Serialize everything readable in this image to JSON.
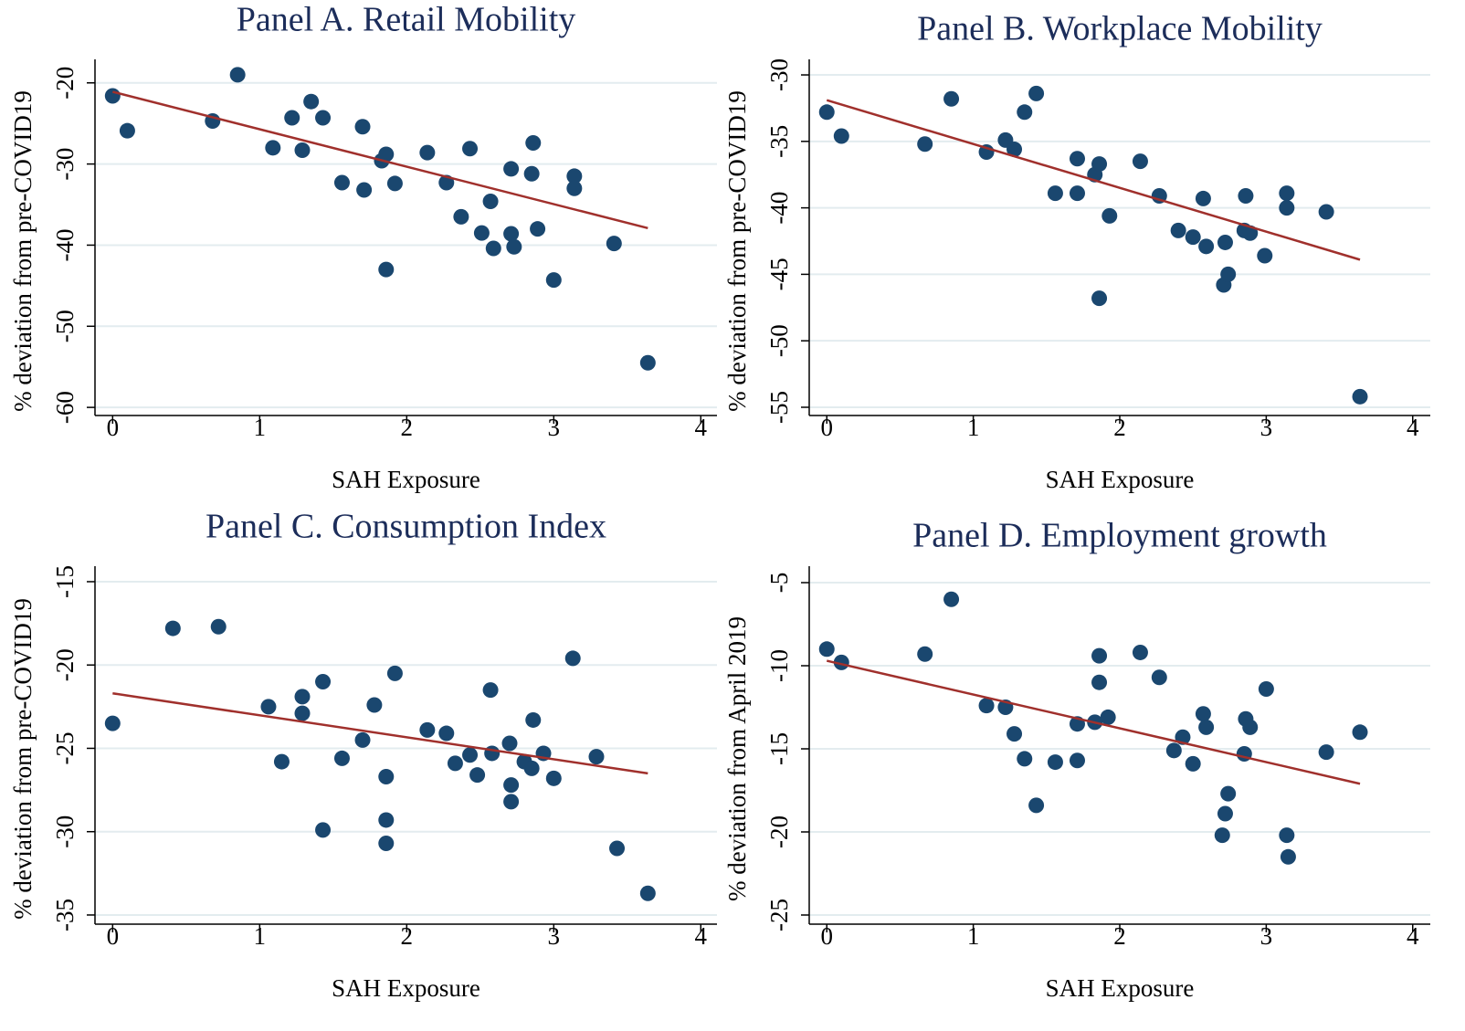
{
  "chart_data": [
    {
      "type": "scatter",
      "title": "Panel A. Retail Mobility",
      "x_label": "SAH Exposure",
      "y_label": "% deviation from pre-COVID19",
      "x": [
        0,
        0.1,
        0.68,
        0.85,
        1.09,
        1.22,
        1.29,
        1.35,
        1.43,
        1.56,
        1.7,
        1.71,
        1.83,
        1.86,
        1.86,
        1.92,
        2.14,
        2.27,
        2.37,
        2.43,
        2.51,
        2.57,
        2.59,
        2.71,
        2.71,
        2.73,
        2.85,
        2.86,
        2.89,
        3.0,
        3.14,
        3.14,
        3.41,
        3.64
      ],
      "values": [
        -21.6,
        -25.9,
        -24.7,
        -19.0,
        -28.0,
        -24.3,
        -28.3,
        -22.3,
        -24.3,
        -32.3,
        -25.4,
        -33.2,
        -29.6,
        -28.8,
        -43.0,
        -32.4,
        -28.6,
        -32.3,
        -36.5,
        -28.1,
        -38.5,
        -34.6,
        -40.4,
        -38.6,
        -30.6,
        -40.2,
        -31.2,
        -27.4,
        -38.0,
        -44.3,
        -31.5,
        -33.0,
        -39.8,
        -54.5
      ],
      "color": "#1a476f",
      "fit_line": {
        "x": [
          0,
          3.64
        ],
        "values": [
          -21.1,
          -37.9
        ],
        "color": "#a0302c"
      },
      "xlim": [
        -0.12,
        4.11
      ],
      "ylim": [
        -61.0,
        -17.1
      ],
      "xticks": [
        0,
        1,
        2,
        3,
        4
      ],
      "yticks": [
        -60,
        -50,
        -40,
        -30,
        -20
      ],
      "grid": true
    },
    {
      "type": "scatter",
      "title": "Panel B. Workplace Mobility",
      "x_label": "SAH Exposure",
      "y_label": "% deviation from pre-COVID19",
      "x": [
        0,
        0.1,
        0.67,
        0.85,
        1.09,
        1.22,
        1.28,
        1.35,
        1.43,
        1.56,
        1.71,
        1.71,
        1.83,
        1.86,
        1.86,
        1.93,
        2.14,
        2.27,
        2.4,
        2.5,
        2.57,
        2.59,
        2.71,
        2.72,
        2.74,
        2.85,
        2.86,
        2.89,
        2.99,
        3.14,
        3.14,
        3.41,
        3.64
      ],
      "values": [
        -32.8,
        -34.6,
        -35.2,
        -31.8,
        -35.8,
        -34.9,
        -35.6,
        -32.8,
        -31.4,
        -38.9,
        -36.3,
        -38.9,
        -37.5,
        -36.7,
        -46.8,
        -40.6,
        -36.5,
        -39.1,
        -41.7,
        -42.2,
        -39.3,
        -42.9,
        -45.8,
        -42.6,
        -45.0,
        -41.7,
        -39.1,
        -41.9,
        -43.6,
        -38.9,
        -40.0,
        -40.3,
        -54.2
      ],
      "color": "#1a476f",
      "fit_line": {
        "x": [
          0,
          3.64
        ],
        "values": [
          -31.9,
          -43.9
        ],
        "color": "#a0302c"
      },
      "xlim": [
        -0.12,
        4.12
      ],
      "ylim": [
        -55.62,
        -28.83
      ],
      "xticks": [
        0,
        1,
        2,
        3,
        4
      ],
      "yticks": [
        -55,
        -50,
        -45,
        -40,
        -35,
        -30
      ],
      "grid": true
    },
    {
      "type": "scatter",
      "title": "Panel C. Consumption Index",
      "x_label": "SAH Exposure",
      "y_label": "% deviation from pre-COVID19",
      "x": [
        0,
        0.41,
        0.72,
        1.06,
        1.15,
        1.29,
        1.29,
        1.43,
        1.43,
        1.56,
        1.7,
        1.78,
        1.86,
        1.86,
        1.86,
        1.92,
        2.14,
        2.27,
        2.33,
        2.43,
        2.48,
        2.57,
        2.58,
        2.7,
        2.71,
        2.71,
        2.8,
        2.85,
        2.86,
        2.93,
        3.0,
        3.13,
        3.29,
        3.43,
        3.64
      ],
      "values": [
        -23.5,
        -17.8,
        -17.7,
        -22.5,
        -25.8,
        -21.9,
        -22.9,
        -21.0,
        -29.9,
        -25.6,
        -24.5,
        -22.4,
        -26.7,
        -29.3,
        -30.7,
        -20.5,
        -23.9,
        -24.1,
        -25.9,
        -25.4,
        -26.6,
        -21.5,
        -25.3,
        -24.7,
        -27.2,
        -28.2,
        -25.8,
        -26.2,
        -23.3,
        -25.3,
        -26.8,
        -19.6,
        -25.5,
        -31.0,
        -33.7
      ],
      "color": "#1a476f",
      "fit_line": {
        "x": [
          0,
          3.64
        ],
        "values": [
          -21.7,
          -26.5
        ],
        "color": "#a0302c"
      },
      "xlim": [
        -0.12,
        4.11
      ],
      "ylim": [
        -35.55,
        -14.07
      ],
      "xticks": [
        0,
        1,
        2,
        3,
        4
      ],
      "yticks": [
        -35,
        -30,
        -25,
        -20,
        -15
      ],
      "grid": true
    },
    {
      "type": "scatter",
      "title": "Panel D. Employment growth",
      "x_label": "SAH Exposure",
      "y_label": "% deviation from April 2019",
      "x": [
        0,
        0.1,
        0.67,
        0.85,
        1.09,
        1.22,
        1.28,
        1.35,
        1.43,
        1.56,
        1.71,
        1.71,
        1.83,
        1.86,
        1.86,
        1.92,
        2.14,
        2.27,
        2.37,
        2.43,
        2.5,
        2.57,
        2.59,
        2.7,
        2.72,
        2.74,
        2.85,
        2.86,
        2.89,
        3.0,
        3.14,
        3.15,
        3.41,
        3.64
      ],
      "values": [
        -9.0,
        -9.8,
        -9.3,
        -6.0,
        -12.4,
        -12.5,
        -14.1,
        -15.6,
        -18.4,
        -15.8,
        -13.5,
        -15.7,
        -13.4,
        -11.0,
        -9.4,
        -13.1,
        -9.2,
        -10.7,
        -15.1,
        -14.3,
        -15.9,
        -12.9,
        -13.7,
        -20.2,
        -18.9,
        -17.7,
        -15.3,
        -13.2,
        -13.7,
        -11.4,
        -20.2,
        -21.5,
        -15.2,
        -14.0
      ],
      "color": "#1a476f",
      "fit_line": {
        "x": [
          0,
          3.64
        ],
        "values": [
          -9.7,
          -17.1
        ],
        "color": "#a0302c"
      },
      "xlim": [
        -0.12,
        4.12
      ],
      "ylim": [
        -25.55,
        -4.01
      ],
      "xticks": [
        0,
        1,
        2,
        3,
        4
      ],
      "yticks": [
        -25,
        -20,
        -15,
        -10,
        -5
      ],
      "grid": true
    }
  ]
}
